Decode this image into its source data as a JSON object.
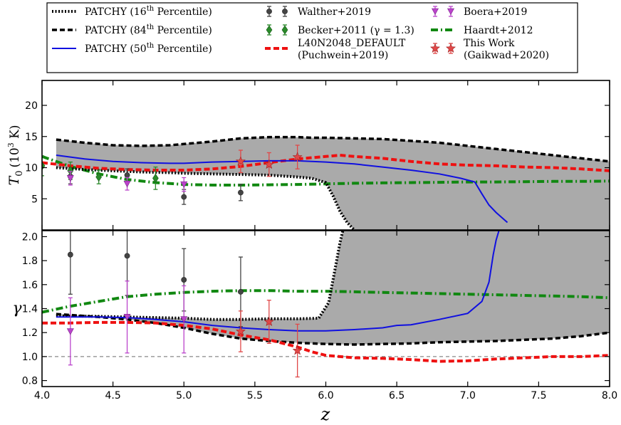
{
  "chart_data": {
    "type": "line",
    "xlabel": "z",
    "xlim": [
      4.0,
      8.0
    ],
    "xticks": [
      4.0,
      4.5,
      5.0,
      5.5,
      6.0,
      6.5,
      7.0,
      7.5,
      8.0
    ],
    "xtick_labels": [
      "4.0",
      "4.5",
      "5.0",
      "5.5",
      "6.0",
      "6.5",
      "7.0",
      "7.5",
      "8.0"
    ],
    "legend": [
      {
        "label": "PATCHY (16",
        "sup": "th",
        "tail": " Percentile)",
        "style": "dotted-black"
      },
      {
        "label": "PATCHY (84",
        "sup": "th",
        "tail": " Percentile)",
        "style": "dashed-black"
      },
      {
        "label": "PATCHY (50",
        "sup": "th",
        "tail": " Percentile)",
        "style": "solid-blue"
      },
      {
        "label": "Walther+2019",
        "style": "marker-circle"
      },
      {
        "label": "Becker+2011 (γ = 1.3)",
        "style": "marker-diamond"
      },
      {
        "label": "L40N2048_DEFAULT",
        "label2": "(Puchwein+2019)",
        "style": "dashed-red"
      },
      {
        "label": "Boera+2019",
        "style": "marker-triangle"
      },
      {
        "label": "Haardt+2012",
        "style": "dashdot-green"
      },
      {
        "label": "This Work",
        "label2": "(Gaikwad+2020)",
        "style": "marker-star"
      }
    ],
    "colors": {
      "patchy_band": "#aaaaaa",
      "patchy_median": "#1010e0",
      "puchwein": "#ee1111",
      "haardt": "#118811",
      "walther": "#444444",
      "becker": "#2a8a2a",
      "boera": "#bb44cc",
      "this_work": "#e04848",
      "reference_line": "#888888"
    },
    "panels": [
      {
        "name": "T0",
        "ylabel": "T",
        "ylabel_sub": "0",
        "ylabel_unit": "(10",
        "ylabel_unit_sup": "3",
        "ylabel_unit_tail": " K)",
        "ylim": [
          0,
          24
        ],
        "yticks": [
          5,
          10,
          15,
          20
        ],
        "ytick_labels": [
          "5",
          "10",
          "15",
          "20"
        ],
        "patchy_84": {
          "x": [
            4.1,
            4.3,
            4.5,
            4.7,
            4.9,
            5.0,
            5.2,
            5.4,
            5.5,
            5.6,
            5.7,
            5.8,
            5.9,
            6.0,
            6.2,
            6.4,
            6.6,
            6.8,
            7.0,
            7.2,
            7.4,
            7.6,
            7.8,
            8.0
          ],
          "y": [
            14.5,
            14.0,
            13.6,
            13.5,
            13.6,
            13.8,
            14.2,
            14.7,
            14.8,
            14.9,
            14.9,
            14.9,
            14.8,
            14.8,
            14.7,
            14.6,
            14.3,
            14.0,
            13.5,
            13.0,
            12.5,
            12.0,
            11.5,
            11.0
          ]
        },
        "patchy_16": {
          "x": [
            4.1,
            4.3,
            4.5,
            4.7,
            4.9,
            5.0,
            5.2,
            5.4,
            5.6,
            5.8,
            5.9,
            6.0,
            6.05,
            6.1,
            6.15,
            6.2
          ],
          "y": [
            10.0,
            9.7,
            9.5,
            9.3,
            9.2,
            9.1,
            9.0,
            8.9,
            8.8,
            8.5,
            8.3,
            7.6,
            5.5,
            3.0,
            1.2,
            0.0
          ]
        },
        "patchy_50": {
          "x": [
            4.1,
            4.3,
            4.5,
            4.7,
            4.9,
            5.0,
            5.2,
            5.4,
            5.6,
            5.8,
            6.0,
            6.2,
            6.4,
            6.6,
            6.8,
            6.95,
            7.05,
            7.1,
            7.15,
            7.2,
            7.28
          ],
          "y": [
            12.0,
            11.4,
            11.0,
            10.8,
            10.7,
            10.7,
            10.9,
            11.0,
            11.1,
            11.1,
            10.9,
            10.6,
            10.1,
            9.6,
            9.0,
            8.3,
            7.7,
            5.8,
            4.0,
            2.8,
            1.2
          ]
        },
        "puchwein": {
          "x": [
            4.0,
            4.2,
            4.4,
            4.6,
            4.8,
            5.0,
            5.2,
            5.4,
            5.6,
            5.8,
            6.0,
            6.1,
            6.2,
            6.4,
            6.6,
            6.8,
            7.0,
            7.2,
            7.4,
            7.6,
            7.8,
            8.0
          ],
          "y": [
            10.8,
            10.3,
            9.9,
            9.7,
            9.6,
            9.6,
            9.8,
            10.2,
            10.8,
            11.4,
            11.8,
            12.0,
            11.8,
            11.5,
            11.0,
            10.6,
            10.4,
            10.3,
            10.1,
            10.0,
            9.8,
            9.5
          ]
        },
        "haardt": {
          "x": [
            4.0,
            4.1,
            4.2,
            4.4,
            4.6,
            4.8,
            5.0,
            5.2,
            5.4,
            5.6,
            5.8,
            6.0,
            6.2,
            6.4,
            6.6,
            6.8,
            7.0,
            7.2,
            7.4,
            7.6,
            7.8,
            8.0
          ],
          "y": [
            11.8,
            11.0,
            10.2,
            9.0,
            8.1,
            7.6,
            7.3,
            7.2,
            7.2,
            7.25,
            7.3,
            7.4,
            7.5,
            7.55,
            7.6,
            7.65,
            7.7,
            7.7,
            7.75,
            7.8,
            7.8,
            7.85
          ]
        },
        "walther": [
          {
            "x": 4.2,
            "y": 8.6,
            "err": 1.2
          },
          {
            "x": 4.6,
            "y": 8.8,
            "err": 1.0
          },
          {
            "x": 5.0,
            "y": 5.3,
            "err": 1.2
          },
          {
            "x": 5.4,
            "y": 6.0,
            "err": 1.3
          }
        ],
        "becker": [
          {
            "x": 4.0,
            "y": 10.3,
            "err": 1.6
          },
          {
            "x": 4.2,
            "y": 9.5,
            "err": 1.4
          },
          {
            "x": 4.4,
            "y": 8.5,
            "err": 1.1
          },
          {
            "x": 4.8,
            "y": 8.3,
            "err": 1.8
          }
        ],
        "boera": [
          {
            "x": 4.2,
            "y": 8.3,
            "err": 1.1
          },
          {
            "x": 4.6,
            "y": 7.4,
            "err": 1.0
          },
          {
            "x": 5.0,
            "y": 7.3,
            "err": 1.1
          }
        ],
        "this_work": [
          {
            "x": 5.4,
            "y": 11.0,
            "err": 1.8
          },
          {
            "x": 5.6,
            "y": 10.5,
            "err": 1.9
          },
          {
            "x": 5.8,
            "y": 11.7,
            "err": 1.9
          }
        ]
      },
      {
        "name": "gamma",
        "ylabel": "γ",
        "ylim": [
          0.75,
          2.05
        ],
        "yticks": [
          0.8,
          1.0,
          1.2,
          1.4,
          1.6,
          1.8,
          2.0
        ],
        "ytick_labels": [
          "0.8",
          "1.0",
          "1.2",
          "1.4",
          "1.6",
          "1.8",
          "2.0"
        ],
        "reference_y": 1.0,
        "patchy_84": {
          "x": [
            4.1,
            4.4,
            4.6,
            4.8,
            5.0,
            5.2,
            5.4,
            5.6,
            5.8,
            6.0,
            6.2,
            6.4,
            6.6,
            6.8,
            7.0,
            7.2,
            7.4,
            7.6,
            7.8,
            8.0
          ],
          "y": [
            1.355,
            1.33,
            1.31,
            1.28,
            1.24,
            1.19,
            1.15,
            1.13,
            1.115,
            1.105,
            1.1,
            1.105,
            1.11,
            1.12,
            1.125,
            1.13,
            1.14,
            1.15,
            1.17,
            1.2
          ]
        },
        "patchy_16": {
          "x": [
            4.1,
            4.4,
            4.6,
            4.8,
            5.0,
            5.2,
            5.4,
            5.6,
            5.8,
            5.95,
            6.02,
            6.06,
            6.1,
            6.12
          ],
          "y": [
            1.34,
            1.335,
            1.33,
            1.325,
            1.32,
            1.31,
            1.31,
            1.315,
            1.315,
            1.32,
            1.45,
            1.7,
            1.95,
            2.05
          ]
        },
        "patchy_50": {
          "x": [
            4.1,
            4.4,
            4.6,
            4.8,
            5.0,
            5.2,
            5.4,
            5.6,
            5.8,
            6.0,
            6.2,
            6.4,
            6.5,
            6.6,
            6.8,
            7.0,
            7.1,
            7.15,
            7.18,
            7.2,
            7.22
          ],
          "y": [
            1.33,
            1.33,
            1.325,
            1.31,
            1.29,
            1.26,
            1.24,
            1.225,
            1.215,
            1.215,
            1.225,
            1.24,
            1.26,
            1.265,
            1.31,
            1.36,
            1.46,
            1.62,
            1.85,
            1.97,
            2.05
          ]
        },
        "puchwein": {
          "x": [
            4.0,
            4.2,
            4.4,
            4.6,
            4.8,
            5.0,
            5.2,
            5.4,
            5.6,
            5.8,
            5.9,
            6.0,
            6.2,
            6.4,
            6.6,
            6.8,
            7.0,
            7.2,
            7.4,
            7.6,
            7.8,
            8.0
          ],
          "y": [
            1.28,
            1.28,
            1.285,
            1.285,
            1.28,
            1.26,
            1.23,
            1.18,
            1.14,
            1.08,
            1.04,
            1.01,
            0.99,
            0.985,
            0.975,
            0.96,
            0.965,
            0.98,
            0.99,
            1.0,
            1.0,
            1.01
          ]
        },
        "haardt": {
          "x": [
            4.0,
            4.2,
            4.4,
            4.6,
            4.8,
            5.0,
            5.2,
            5.4,
            5.6,
            5.8,
            6.0,
            6.2,
            6.4,
            6.6,
            6.8,
            7.0,
            7.2,
            7.4,
            7.6,
            7.8,
            8.0
          ],
          "y": [
            1.37,
            1.42,
            1.46,
            1.5,
            1.52,
            1.535,
            1.545,
            1.55,
            1.55,
            1.545,
            1.545,
            1.54,
            1.535,
            1.53,
            1.525,
            1.52,
            1.515,
            1.51,
            1.505,
            1.5,
            1.49
          ]
        },
        "walther": [
          {
            "x": 4.2,
            "y": 1.85,
            "err": 0.33
          },
          {
            "x": 4.6,
            "y": 1.84,
            "err": 0.33
          },
          {
            "x": 5.0,
            "y": 1.64,
            "err": 0.26
          },
          {
            "x": 5.4,
            "y": 1.54,
            "err": 0.29
          }
        ],
        "becker": [],
        "boera": [
          {
            "x": 4.2,
            "y": 1.21,
            "err": 0.28
          },
          {
            "x": 4.6,
            "y": 1.33,
            "err": 0.3
          },
          {
            "x": 5.0,
            "y": 1.31,
            "err": 0.28
          }
        ],
        "this_work": [
          {
            "x": 5.4,
            "y": 1.21,
            "err": 0.17
          },
          {
            "x": 5.6,
            "y": 1.29,
            "err": 0.18
          },
          {
            "x": 5.8,
            "y": 1.05,
            "err": 0.22
          }
        ]
      }
    ]
  }
}
